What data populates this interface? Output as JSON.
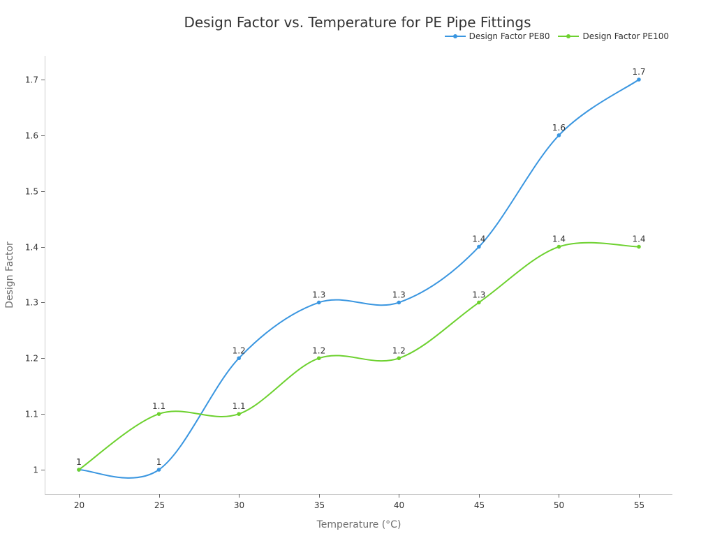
{
  "chart_data": {
    "type": "line",
    "title": "Design Factor vs. Temperature for PE Pipe Fittings",
    "xlabel": "Temperature (°C)",
    "ylabel": "Design Factor",
    "x": [
      20,
      25,
      30,
      35,
      40,
      45,
      50,
      55
    ],
    "x_tick_labels": [
      "20",
      "25",
      "30",
      "35",
      "40",
      "45",
      "50",
      "55"
    ],
    "y_ticks": [
      1,
      1.1,
      1.2,
      1.3,
      1.4,
      1.5,
      1.6,
      1.7
    ],
    "y_tick_labels": [
      "1",
      "1.1",
      "1.2",
      "1.3",
      "1.4",
      "1.5",
      "1.6",
      "1.7"
    ],
    "ylim": [
      0.955,
      1.745
    ],
    "xlim": [
      17.85,
      57.05
    ],
    "grid": false,
    "smooth": true,
    "legend_position": "top-right",
    "series": [
      {
        "name": "Design Factor PE80",
        "color": "#3a96e0",
        "values": [
          1,
          1,
          1.2,
          1.3,
          1.3,
          1.4,
          1.6,
          1.7
        ],
        "labels": [
          "1",
          "1",
          "1.2",
          "1.3",
          "1.3",
          "1.4",
          "1.6",
          "1.7"
        ]
      },
      {
        "name": "Design Factor PE100",
        "color": "#6dd12f",
        "values": [
          1,
          1.1,
          1.1,
          1.2,
          1.2,
          1.3,
          1.4,
          1.4
        ],
        "labels": [
          "1",
          "1.1",
          "1.1",
          "1.2",
          "1.2",
          "1.3",
          "1.4",
          "1.4"
        ]
      }
    ]
  }
}
